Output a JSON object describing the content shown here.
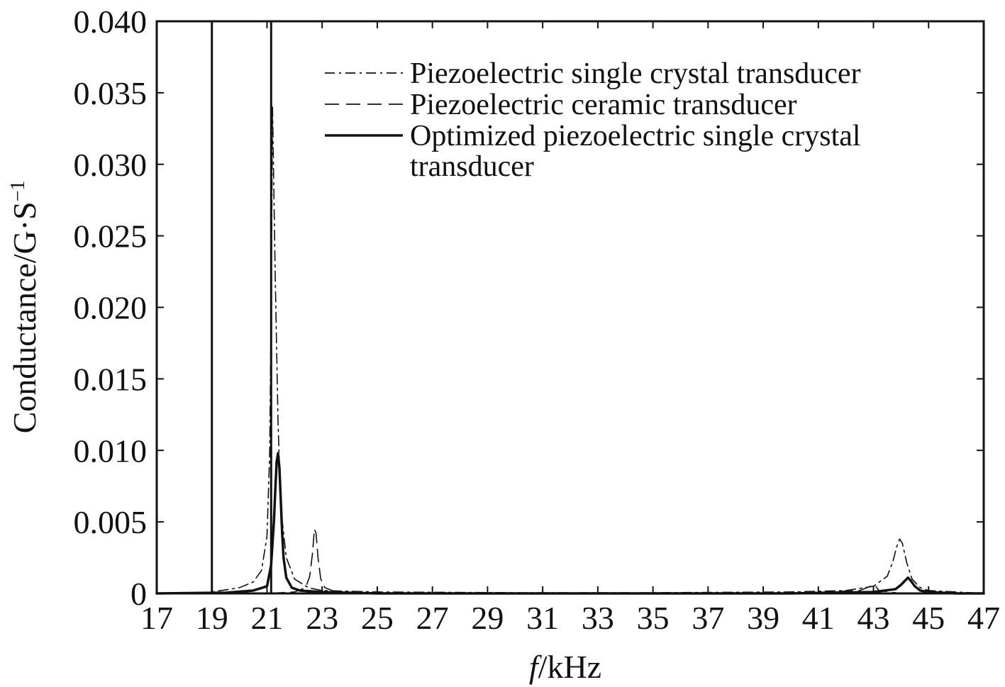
{
  "chart_data": {
    "type": "line",
    "title": "",
    "xlabel_italic": "f",
    "xlabel_rest": "/kHz",
    "ylabel_main": "Conductance/G·S",
    "ylabel_sup": "−1",
    "xlim": [
      17,
      47
    ],
    "ylim": [
      0,
      0.04
    ],
    "xticks": [
      17,
      19,
      21,
      23,
      25,
      27,
      29,
      31,
      33,
      35,
      37,
      39,
      41,
      43,
      45,
      47
    ],
    "xtick_labels": [
      "17",
      "19",
      "21",
      "23",
      "25",
      "27",
      "29",
      "31",
      "33",
      "35",
      "37",
      "39",
      "41",
      "43",
      "45",
      "47"
    ],
    "yticks": [
      0,
      0.005,
      0.01,
      0.015,
      0.02,
      0.025,
      0.03,
      0.035,
      0.04
    ],
    "ytick_labels": [
      "0",
      "0.005",
      "0.010",
      "0.015",
      "0.020",
      "0.025",
      "0.030",
      "0.035",
      "0.040"
    ],
    "grid": false,
    "legend_position": "top-right",
    "vertical_lines": [
      19,
      21.15
    ],
    "series": [
      {
        "name": "Piezoelectric single crystal transducer",
        "style": "dashdot",
        "color": "#111111",
        "x": [
          17,
          19,
          20,
          20.5,
          20.8,
          21.0,
          21.1,
          21.15,
          21.2,
          21.3,
          21.4,
          21.5,
          21.7,
          22.0,
          22.5,
          23,
          25,
          30,
          35,
          40,
          42,
          43,
          43.5,
          43.7,
          43.85,
          43.95,
          44.05,
          44.2,
          44.4,
          44.7,
          45,
          46,
          47
        ],
        "y": [
          0,
          0.0001,
          0.0004,
          0.0008,
          0.0016,
          0.004,
          0.01,
          0.02,
          0.034,
          0.022,
          0.012,
          0.006,
          0.0025,
          0.001,
          0.0004,
          0.0002,
          0.0001,
          5e-05,
          5e-05,
          0.0001,
          0.0002,
          0.0005,
          0.0012,
          0.0022,
          0.0033,
          0.0038,
          0.0035,
          0.0022,
          0.001,
          0.0004,
          0.0002,
          0.0001,
          0
        ]
      },
      {
        "name": "Piezoelectric ceramic transducer",
        "style": "dashed",
        "color": "#111111",
        "x": [
          17,
          21,
          22,
          22.4,
          22.55,
          22.65,
          22.72,
          22.78,
          22.85,
          22.95,
          23.1,
          23.5,
          24,
          30,
          40,
          42.5,
          42.9,
          43.05,
          43.2,
          44,
          47
        ],
        "y": [
          0,
          0,
          0.0001,
          0.0004,
          0.0012,
          0.0028,
          0.0045,
          0.0042,
          0.0025,
          0.001,
          0.0004,
          0.0001,
          0,
          0,
          0,
          0.0002,
          0.0005,
          0.0006,
          0.0002,
          0,
          0
        ]
      },
      {
        "name": "Optimized piezoelectric single crystal transducer",
        "style": "solid",
        "color": "#111111",
        "x": [
          17,
          19.5,
          20.5,
          21.0,
          21.15,
          21.2,
          21.25,
          21.3,
          21.35,
          21.4,
          21.45,
          21.5,
          21.55,
          21.6,
          21.7,
          21.9,
          22.2,
          23,
          25,
          30,
          35,
          40,
          43,
          43.8,
          44.0,
          44.15,
          44.25,
          44.35,
          44.5,
          44.7,
          45,
          46,
          47
        ],
        "y": [
          0,
          5e-05,
          0.0002,
          0.0005,
          0.002,
          0.0035,
          0.005,
          0.0072,
          0.0092,
          0.0098,
          0.0088,
          0.0065,
          0.0042,
          0.0025,
          0.0011,
          0.0004,
          0.0002,
          0.0001,
          0,
          0,
          0,
          0,
          0.0001,
          0.0003,
          0.0006,
          0.0009,
          0.0011,
          0.0009,
          0.0005,
          0.0002,
          0.0001,
          0,
          0
        ]
      }
    ],
    "legend": {
      "entry1": "Piezoelectric single crystal transducer",
      "entry2": "Piezoelectric ceramic transducer",
      "entry3_line1": "Optimized piezoelectric single crystal",
      "entry3_line2": "transducer"
    }
  }
}
